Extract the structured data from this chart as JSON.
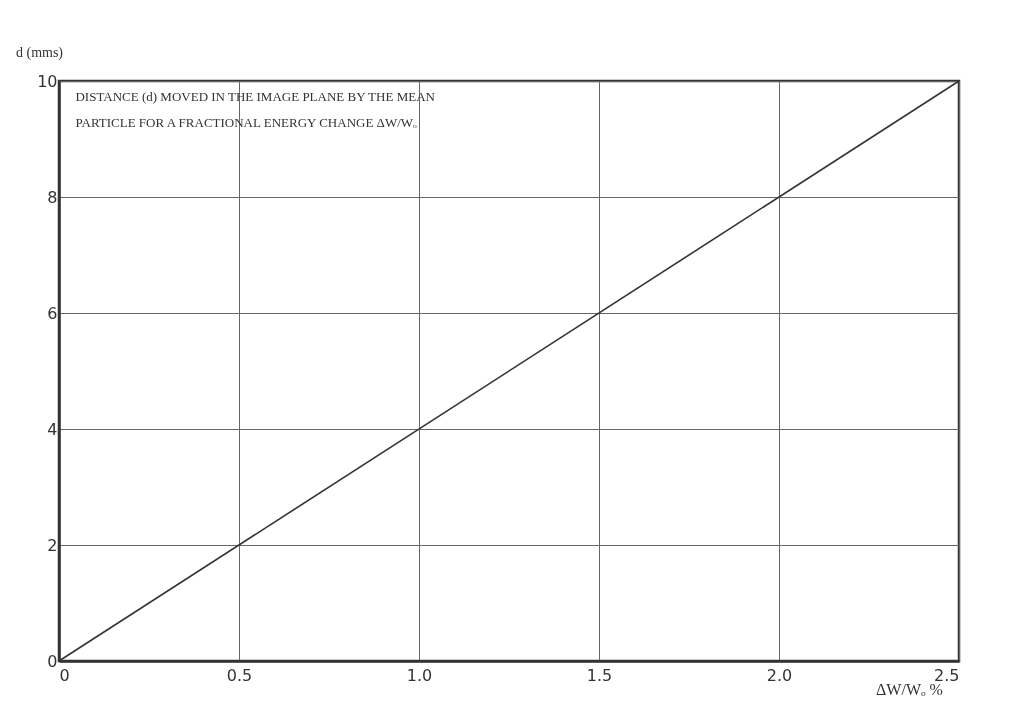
{
  "chart_data": {
    "type": "line",
    "title": "DISTANCE (d) MOVED IN THE IMAGE PLANE BY THE MEAN PARTICLE FOR A FRACTIONAL ENERGY CHANGE ΔW/Wₒ",
    "xlabel": "ΔW/Wₒ %",
    "ylabel": "d (mms)",
    "x": [
      0,
      2.5
    ],
    "series": [
      {
        "color": "#333333",
        "values": [
          0,
          10
        ]
      }
    ],
    "xlim": [
      0,
      2.5
    ],
    "xticks": [
      0,
      0.5,
      {
        "value": 1,
        "label": "1.0"
      },
      1.5,
      {
        "value": 2,
        "label": "2.0"
      },
      2.5
    ],
    "ylim": [
      0,
      10
    ],
    "yticks": [
      0,
      2,
      4,
      6,
      8,
      10
    ],
    "grid": true,
    "marker": "none",
    "line_style": "solid"
  }
}
